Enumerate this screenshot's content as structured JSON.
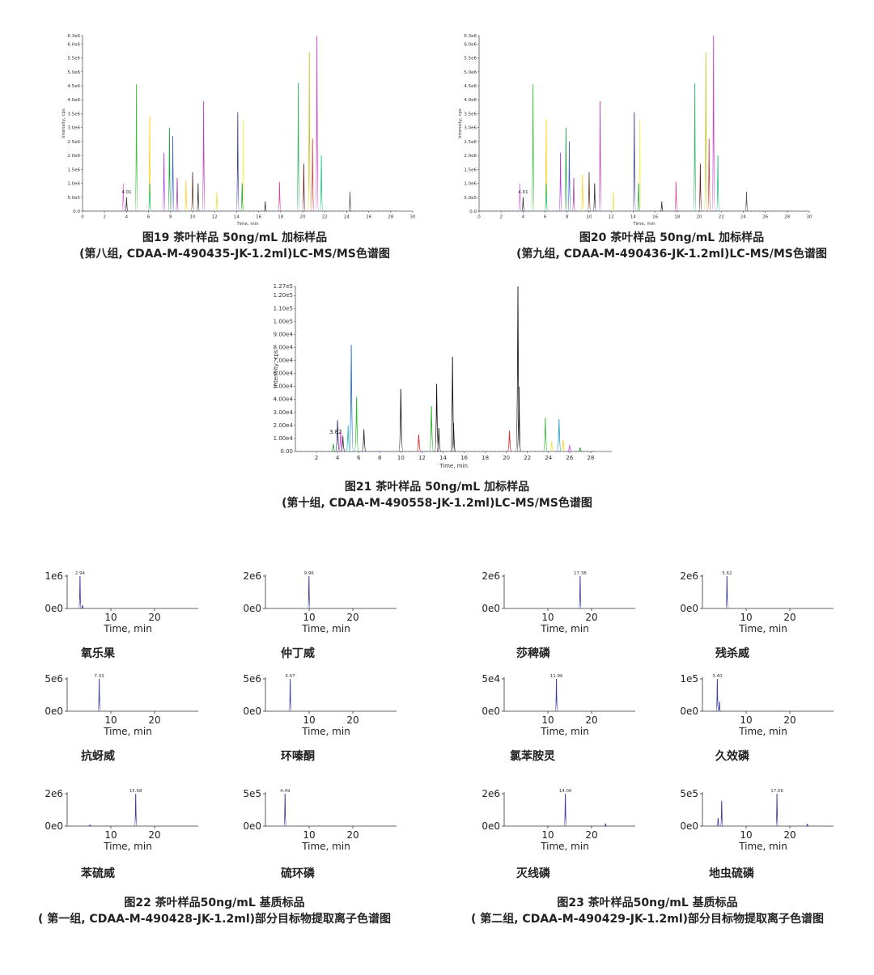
{
  "figures": {
    "fig19": {
      "caption_line1": "图19 茶叶样品 50ng/mL 加标样品",
      "caption_line2": "(第八组, CDAA-M-490435-JK-1.2ml)LC-MS/MS色谱图"
    },
    "fig20": {
      "caption_line1": "图20 茶叶样品 50ng/mL 加标样品",
      "caption_line2": "(第九组, CDAA-M-490436-JK-1.2ml)LC-MS/MS色谱图"
    },
    "fig21": {
      "caption_line1": "图21 茶叶样品 50ng/mL 加标样品",
      "caption_line2": "(第十组, CDAA-M-490558-JK-1.2ml)LC-MS/MS色谱图"
    },
    "fig22": {
      "caption_line1": "图22 茶叶样品50ng/mL 基质标品",
      "caption_line2": "( 第一组, CDAA-M-490428-JK-1.2ml)部分目标物提取离子色谱图"
    },
    "fig23": {
      "caption_line1": "图23 茶叶样品50ng/mL 基质标品",
      "caption_line2": "( 第二组, CDAA-M-490429-JK-1.2ml)部分目标物提取离子色谱图"
    }
  },
  "chart_data": [
    {
      "id": "fig19",
      "type": "line",
      "title": "图19",
      "xlabel": "Time, min",
      "ylabel": "Intensity, cps",
      "xlim": [
        0,
        30
      ],
      "ylim": [
        0,
        6300000
      ],
      "x_ticks": [
        "0",
        "2",
        "4",
        "6",
        "8",
        "10",
        "12",
        "14",
        "16",
        "18",
        "20",
        "22",
        "24",
        "26",
        "28",
        "30"
      ],
      "y_ticks": [
        "0.0",
        "5.0e5",
        "1.0e6",
        "1.5e6",
        "2.0e6",
        "2.5e6",
        "3.0e6",
        "3.5e6",
        "4.0e6",
        "4.5e6",
        "5.0e6",
        "5.5e6",
        "6.0e6",
        "6.3e6"
      ],
      "annotation": "4.01",
      "peaks": [
        {
          "t": 3.7,
          "h": 1.0,
          "c": "#e86fe8"
        },
        {
          "t": 4.0,
          "h": 0.5,
          "c": "#333333"
        },
        {
          "t": 4.9,
          "h": 4.55,
          "c": "#38c038"
        },
        {
          "t": 6.1,
          "h": 3.4,
          "c": "#ffd21e"
        },
        {
          "t": 6.1,
          "h": 1.0,
          "c": "#20c0a0"
        },
        {
          "t": 7.4,
          "h": 2.1,
          "c": "#b040e0"
        },
        {
          "t": 7.9,
          "h": 3.0,
          "c": "#20a040"
        },
        {
          "t": 8.2,
          "h": 2.7,
          "c": "#4060e0"
        },
        {
          "t": 8.6,
          "h": 1.2,
          "c": "#a040a0"
        },
        {
          "t": 9.4,
          "h": 1.1,
          "c": "#ffd21e"
        },
        {
          "t": 10.0,
          "h": 1.4,
          "c": "#6b3a2a"
        },
        {
          "t": 10.5,
          "h": 1.0,
          "c": "#333333"
        },
        {
          "t": 11.0,
          "h": 3.95,
          "c": "#c040c0"
        },
        {
          "t": 12.2,
          "h": 0.7,
          "c": "#f0e040"
        },
        {
          "t": 14.1,
          "h": 3.55,
          "c": "#4040a0"
        },
        {
          "t": 14.6,
          "h": 3.3,
          "c": "#f0f060"
        },
        {
          "t": 14.5,
          "h": 1.0,
          "c": "#20a040"
        },
        {
          "t": 16.6,
          "h": 0.35,
          "c": "#333333"
        },
        {
          "t": 17.9,
          "h": 1.05,
          "c": "#e040a0"
        },
        {
          "t": 19.6,
          "h": 4.6,
          "c": "#30b060"
        },
        {
          "t": 20.1,
          "h": 1.7,
          "c": "#6b2020"
        },
        {
          "t": 20.6,
          "h": 5.7,
          "c": "#c8c820"
        },
        {
          "t": 20.9,
          "h": 2.6,
          "c": "#e04040"
        },
        {
          "t": 21.3,
          "h": 6.3,
          "c": "#d040d0"
        },
        {
          "t": 21.7,
          "h": 2.0,
          "c": "#20c080"
        },
        {
          "t": 24.3,
          "h": 0.7,
          "c": "#555555"
        }
      ]
    },
    {
      "id": "fig20",
      "type": "line",
      "title": "图20",
      "xlabel": "Time, min",
      "ylabel": "Intensity, cps",
      "xlim": [
        0,
        30
      ],
      "ylim": [
        0,
        6300000
      ],
      "x_ticks": [
        "0",
        "2",
        "4",
        "6",
        "8",
        "10",
        "12",
        "14",
        "16",
        "18",
        "20",
        "22",
        "24",
        "26",
        "28",
        "30"
      ],
      "y_ticks": [
        "0.0",
        "5.0e5",
        "1.0e6",
        "1.5e6",
        "2.0e6",
        "2.5e6",
        "3.0e6",
        "3.5e6",
        "4.0e6",
        "4.5e6",
        "5.0e6",
        "5.5e6",
        "6.0e6",
        "6.3e6"
      ],
      "annotation": "4.01",
      "peaks": [
        {
          "t": 3.7,
          "h": 1.0,
          "c": "#e86fe8"
        },
        {
          "t": 4.0,
          "h": 0.5,
          "c": "#333333"
        },
        {
          "t": 4.9,
          "h": 4.55,
          "c": "#38c038"
        },
        {
          "t": 6.1,
          "h": 3.3,
          "c": "#ffd21e"
        },
        {
          "t": 6.1,
          "h": 1.0,
          "c": "#20c0a0"
        },
        {
          "t": 7.4,
          "h": 2.1,
          "c": "#b040e0"
        },
        {
          "t": 7.9,
          "h": 3.0,
          "c": "#20a040"
        },
        {
          "t": 8.2,
          "h": 2.5,
          "c": "#4060e0"
        },
        {
          "t": 8.6,
          "h": 1.2,
          "c": "#a040a0"
        },
        {
          "t": 9.4,
          "h": 1.3,
          "c": "#ffd21e"
        },
        {
          "t": 10.0,
          "h": 1.4,
          "c": "#6b3a2a"
        },
        {
          "t": 10.5,
          "h": 1.0,
          "c": "#333333"
        },
        {
          "t": 11.0,
          "h": 3.95,
          "c": "#c040c0"
        },
        {
          "t": 12.2,
          "h": 0.7,
          "c": "#f0e040"
        },
        {
          "t": 14.1,
          "h": 3.55,
          "c": "#4040a0"
        },
        {
          "t": 14.6,
          "h": 3.3,
          "c": "#f0f060"
        },
        {
          "t": 14.5,
          "h": 1.0,
          "c": "#20a040"
        },
        {
          "t": 16.6,
          "h": 0.35,
          "c": "#333333"
        },
        {
          "t": 17.9,
          "h": 1.05,
          "c": "#e040a0"
        },
        {
          "t": 19.6,
          "h": 4.6,
          "c": "#30b060"
        },
        {
          "t": 20.1,
          "h": 1.7,
          "c": "#6b2020"
        },
        {
          "t": 20.6,
          "h": 5.7,
          "c": "#c8c820"
        },
        {
          "t": 20.9,
          "h": 2.6,
          "c": "#e04040"
        },
        {
          "t": 21.3,
          "h": 6.3,
          "c": "#d040d0"
        },
        {
          "t": 21.7,
          "h": 2.0,
          "c": "#20c080"
        },
        {
          "t": 24.3,
          "h": 0.7,
          "c": "#555555"
        }
      ]
    },
    {
      "id": "fig21",
      "type": "line",
      "title": "图21",
      "xlabel": "Time, min",
      "ylabel": "Intensity, cps",
      "xlim": [
        0,
        30
      ],
      "ylim": [
        0,
        127000
      ],
      "x_ticks": [
        "2",
        "4",
        "6",
        "8",
        "10",
        "12",
        "14",
        "16",
        "18",
        "20",
        "22",
        "24",
        "26",
        "28"
      ],
      "y_ticks": [
        "0.00",
        "1.00e4",
        "2.00e4",
        "3.00e4",
        "4.00e4",
        "5.00e4",
        "6.00e4",
        "7.00e4",
        "8.00e4",
        "9.00e4",
        "1.00e5",
        "1.10e5",
        "1.20e5",
        "1.27e5"
      ],
      "annotation": "3.82",
      "peaks": [
        {
          "t": 3.6,
          "h": 0.6,
          "c": "#30a030"
        },
        {
          "t": 4.0,
          "h": 2.4,
          "c": "#2a2060"
        },
        {
          "t": 4.3,
          "h": 1.6,
          "c": "#e040e0"
        },
        {
          "t": 4.5,
          "h": 1.2,
          "c": "#333333"
        },
        {
          "t": 5.0,
          "h": 2.0,
          "c": "#20c0c0"
        },
        {
          "t": 5.3,
          "h": 8.2,
          "c": "#2070d0"
        },
        {
          "t": 5.8,
          "h": 4.2,
          "c": "#20c020"
        },
        {
          "t": 6.5,
          "h": 1.7,
          "c": "#222222"
        },
        {
          "t": 10.0,
          "h": 4.8,
          "c": "#111111"
        },
        {
          "t": 11.7,
          "h": 1.3,
          "c": "#e02020"
        },
        {
          "t": 12.9,
          "h": 3.5,
          "c": "#20b020"
        },
        {
          "t": 13.4,
          "h": 5.2,
          "c": "#111111"
        },
        {
          "t": 13.6,
          "h": 1.8,
          "c": "#111111"
        },
        {
          "t": 14.9,
          "h": 7.3,
          "c": "#111111"
        },
        {
          "t": 15.0,
          "h": 2.2,
          "c": "#111111"
        },
        {
          "t": 20.3,
          "h": 1.6,
          "c": "#e02020"
        },
        {
          "t": 21.1,
          "h": 12.7,
          "c": "#111111"
        },
        {
          "t": 21.2,
          "h": 5.0,
          "c": "#111111"
        },
        {
          "t": 23.7,
          "h": 2.6,
          "c": "#30c030"
        },
        {
          "t": 24.3,
          "h": 0.8,
          "c": "#f0e040"
        },
        {
          "t": 25.0,
          "h": 2.5,
          "c": "#20a0c0"
        },
        {
          "t": 25.4,
          "h": 0.9,
          "c": "#ffd21e"
        },
        {
          "t": 26.0,
          "h": 0.5,
          "c": "#e040e0"
        },
        {
          "t": 27.0,
          "h": 0.3,
          "c": "#30a030"
        }
      ]
    },
    {
      "id": "eic-1",
      "type": "line",
      "series_name": "氧乐果",
      "xlabel": "Time, min",
      "xlim": [
        0,
        30
      ],
      "y_ticks": [
        "1e6",
        "0e0"
      ],
      "x_ticks": [
        "10",
        "20"
      ],
      "peak_label": "2.94",
      "peaks": [
        {
          "t": 2.94,
          "h": 1.0
        },
        {
          "t": 3.5,
          "h": 0.1
        }
      ]
    },
    {
      "id": "eic-2",
      "type": "line",
      "series_name": "仲丁威",
      "xlabel": "Time, min",
      "xlim": [
        0,
        30
      ],
      "y_ticks": [
        "2e6",
        "0e0"
      ],
      "x_ticks": [
        "10",
        "20"
      ],
      "peak_label": "9.96",
      "peaks": [
        {
          "t": 9.96,
          "h": 1.0
        }
      ]
    },
    {
      "id": "eic-3",
      "type": "line",
      "series_name": "抗蚜威",
      "xlabel": "Time, min",
      "xlim": [
        0,
        30
      ],
      "y_ticks": [
        "5e6",
        "0e0"
      ],
      "x_ticks": [
        "10",
        "20"
      ],
      "peak_label": "7.33",
      "peaks": [
        {
          "t": 7.33,
          "h": 1.0
        }
      ]
    },
    {
      "id": "eic-4",
      "type": "line",
      "series_name": "环嗪酮",
      "xlabel": "Time, min",
      "xlim": [
        0,
        30
      ],
      "y_ticks": [
        "5e6",
        "0e0"
      ],
      "x_ticks": [
        "10",
        "20"
      ],
      "peak_label": "5.67",
      "peaks": [
        {
          "t": 5.67,
          "h": 1.0
        }
      ]
    },
    {
      "id": "eic-5",
      "type": "line",
      "series_name": "苯硫威",
      "xlabel": "Time, min",
      "xlim": [
        0,
        30
      ],
      "y_ticks": [
        "2e6",
        "0e0"
      ],
      "x_ticks": [
        "10",
        "20"
      ],
      "peak_label": "15.68",
      "peaks": [
        {
          "t": 15.68,
          "h": 1.0
        },
        {
          "t": 5.2,
          "h": 0.03
        }
      ]
    },
    {
      "id": "eic-6",
      "type": "line",
      "series_name": "硫环磷",
      "xlabel": "Time, min",
      "xlim": [
        0,
        30
      ],
      "y_ticks": [
        "5e5",
        "0e0"
      ],
      "x_ticks": [
        "10",
        "20"
      ],
      "peak_label": "4.49",
      "peaks": [
        {
          "t": 4.49,
          "h": 1.0
        }
      ]
    },
    {
      "id": "eic-7",
      "type": "line",
      "series_name": "莎稗磷",
      "xlabel": "Time, min",
      "xlim": [
        0,
        30
      ],
      "y_ticks": [
        "2e6",
        "0e0"
      ],
      "x_ticks": [
        "10",
        "20"
      ],
      "peak_label": "17.38",
      "peaks": [
        {
          "t": 17.38,
          "h": 1.0
        }
      ]
    },
    {
      "id": "eic-8",
      "type": "line",
      "series_name": "残杀威",
      "xlabel": "Time, min",
      "xlim": [
        0,
        30
      ],
      "y_ticks": [
        "2e6",
        "0e0"
      ],
      "x_ticks": [
        "10",
        "20"
      ],
      "peak_label": "5.62",
      "peaks": [
        {
          "t": 5.62,
          "h": 1.0
        }
      ]
    },
    {
      "id": "eic-9",
      "type": "line",
      "series_name": "氯苯胺灵",
      "xlabel": "Time, min",
      "xlim": [
        0,
        30
      ],
      "y_ticks": [
        "5e4",
        "0e0"
      ],
      "x_ticks": [
        "10",
        "20"
      ],
      "peak_label": "11.96",
      "peaks": [
        {
          "t": 11.96,
          "h": 1.0
        }
      ]
    },
    {
      "id": "eic-10",
      "type": "line",
      "series_name": "久效磷",
      "xlabel": "Time, min",
      "xlim": [
        0,
        30
      ],
      "y_ticks": [
        "1e5",
        "0e0"
      ],
      "x_ticks": [
        "10",
        "20"
      ],
      "peak_label": "3.40",
      "peaks": [
        {
          "t": 3.4,
          "h": 1.0
        },
        {
          "t": 3.9,
          "h": 0.3
        }
      ]
    },
    {
      "id": "eic-11",
      "type": "line",
      "series_name": "灭线磷",
      "xlabel": "Time, min",
      "xlim": [
        0,
        30
      ],
      "y_ticks": [
        "2e6",
        "0e0"
      ],
      "x_ticks": [
        "10",
        "20"
      ],
      "peak_label": "14.00",
      "peaks": [
        {
          "t": 14.0,
          "h": 1.0
        },
        {
          "t": 23.2,
          "h": 0.08
        }
      ]
    },
    {
      "id": "eic-12",
      "type": "line",
      "series_name": "地虫硫磷",
      "xlabel": "Time, min",
      "xlim": [
        0,
        30
      ],
      "y_ticks": [
        "5e5",
        "0e0"
      ],
      "x_ticks": [
        "10",
        "20"
      ],
      "peak_label": "17.06",
      "peaks": [
        {
          "t": 17.06,
          "h": 1.0
        },
        {
          "t": 4.4,
          "h": 0.78
        },
        {
          "t": 3.6,
          "h": 0.25
        },
        {
          "t": 24.0,
          "h": 0.07
        }
      ]
    }
  ]
}
